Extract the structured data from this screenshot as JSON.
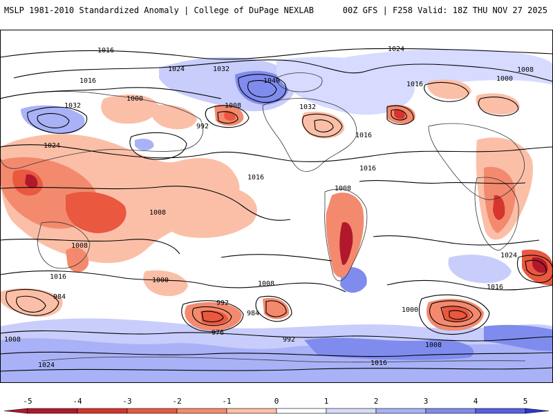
{
  "header": {
    "left": "MSLP 1981-2010 Standardized Anomaly | College of DuPage NEXLAB",
    "right": "00Z GFS | F258 Valid: 18Z THU NOV 27 2025"
  },
  "colorbar": {
    "ticks": [
      "-5",
      "-4",
      "-3",
      "-2",
      "-1",
      "0",
      "1",
      "2",
      "3",
      "4",
      "5"
    ],
    "colors": [
      "#b2182b",
      "#d6342e",
      "#e9583f",
      "#f38a6e",
      "#fbbfa8",
      "#ffffff",
      "#d6dbff",
      "#a9b2f7",
      "#7f8cee",
      "#5560e3",
      "#2b36d9"
    ]
  },
  "isobars": [
    {
      "label": "1016"
    },
    {
      "label": "1024"
    },
    {
      "label": "1032"
    },
    {
      "label": "1040"
    },
    {
      "label": "1008"
    },
    {
      "label": "1000"
    },
    {
      "label": "992"
    },
    {
      "label": "984"
    },
    {
      "label": "976"
    },
    {
      "label": "1024"
    },
    {
      "label": "1016"
    },
    {
      "label": "1008"
    },
    {
      "label": "1032"
    },
    {
      "label": "1016"
    },
    {
      "label": "1008"
    },
    {
      "label": "1016"
    },
    {
      "label": "1000"
    },
    {
      "label": "1016"
    },
    {
      "label": "984"
    },
    {
      "label": "992"
    },
    {
      "label": "1000"
    },
    {
      "label": "1008"
    },
    {
      "label": "1008"
    },
    {
      "label": "1024"
    },
    {
      "label": "1016"
    },
    {
      "label": "1000"
    },
    {
      "label": "1008"
    },
    {
      "label": "1016"
    },
    {
      "label": "1032"
    },
    {
      "label": "1024"
    },
    {
      "label": "1016"
    },
    {
      "label": "1008"
    },
    {
      "label": "992"
    },
    {
      "label": "1016"
    },
    {
      "label": "1024"
    },
    {
      "label": "1008"
    }
  ]
}
